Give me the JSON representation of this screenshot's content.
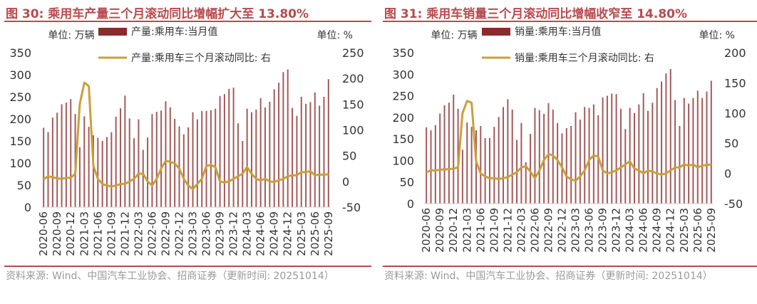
{
  "colors": {
    "title": "#b84a4f",
    "bar": "#8b2b2b",
    "line": "#c9a03a",
    "rule": "#b84a4f",
    "source": "#9a9a9a",
    "axis": "#333333"
  },
  "chart_data": [
    {
      "type": "bar",
      "title": "图 30:  乘用车产量三个月滚动同比增幅扩大至 13.80%",
      "left_unit": "单位:   万辆",
      "right_unit": "单位:    %",
      "legend_position": "top",
      "source": "资料来源:  Wind、中国汽车工业协会、招商证券（更新时间:  20251014）",
      "categories": [
        "2020-06",
        "2020-07",
        "2020-08",
        "2020-09",
        "2020-10",
        "2020-11",
        "2020-12",
        "2021-01",
        "2021-02",
        "2021-03",
        "2021-04",
        "2021-05",
        "2021-06",
        "2021-07",
        "2021-08",
        "2021-09",
        "2021-10",
        "2021-11",
        "2021-12",
        "2022-01",
        "2022-02",
        "2022-03",
        "2022-04",
        "2022-05",
        "2022-06",
        "2022-07",
        "2022-08",
        "2022-09",
        "2022-10",
        "2022-11",
        "2022-12",
        "2023-01",
        "2023-02",
        "2023-03",
        "2023-04",
        "2023-05",
        "2023-06",
        "2023-07",
        "2023-08",
        "2023-09",
        "2023-10",
        "2023-11",
        "2023-12",
        "2024-01",
        "2024-02",
        "2024-03",
        "2024-04",
        "2024-05",
        "2024-06",
        "2024-07",
        "2024-08",
        "2024-09",
        "2024-10",
        "2024-11",
        "2024-12",
        "2025-01",
        "2025-02",
        "2025-03",
        "2025-04",
        "2025-05",
        "2025-06",
        "2025-07",
        "2025-08",
        "2025-09"
      ],
      "x_tick_labels": [
        "2020-06",
        "2020-09",
        "2020-12",
        "2021-03",
        "2021-06",
        "2021-09",
        "2021-12",
        "2022-03",
        "2022-06",
        "2022-09",
        "2022-12",
        "2023-03",
        "2023-06",
        "2023-09",
        "2023-12",
        "2024-03",
        "2024-06",
        "2024-09",
        "2024-12",
        "2025-03",
        "2025-06",
        "2025-09"
      ],
      "y_left": {
        "min": 0,
        "max": 350,
        "ticks": [
          0,
          50,
          100,
          150,
          200,
          250,
          300,
          350
        ]
      },
      "y_right": {
        "min": -50,
        "max": 250,
        "ticks": [
          -50,
          0,
          50,
          100,
          150,
          200,
          250
        ]
      },
      "series": [
        {
          "name": "产量:乘用车:当月值",
          "axis": "left",
          "type": "bar",
          "values": [
            180,
            170,
            203,
            214,
            233,
            237,
            245,
            211,
            136,
            206,
            182,
            163,
            157,
            150,
            159,
            170,
            205,
            224,
            253,
            201,
            156,
            199,
            130,
            158,
            211,
            216,
            219,
            240,
            226,
            200,
            183,
            165,
            181,
            215,
            199,
            218,
            218,
            220,
            223,
            252,
            256,
            268,
            271,
            190,
            150,
            223,
            215,
            221,
            247,
            226,
            239,
            267,
            282,
            306,
            312,
            225,
            207,
            250,
            234,
            238,
            260,
            230,
            250,
            290
          ]
        },
        {
          "name": "产量:乘用车三个月滚动同比:  右",
          "axis": "right",
          "type": "line",
          "values": [
            4,
            10,
            8,
            6,
            5,
            7,
            7,
            15,
            150,
            192,
            185,
            30,
            5,
            -5,
            -8,
            -10,
            -8,
            -5,
            -5,
            0,
            5,
            15,
            15,
            0,
            -8,
            5,
            25,
            40,
            38,
            35,
            25,
            5,
            -8,
            -15,
            -5,
            5,
            30,
            32,
            28,
            0,
            -2,
            0,
            5,
            10,
            15,
            28,
            15,
            5,
            2,
            5,
            0,
            -1,
            2,
            5,
            10,
            12,
            12,
            18,
            18,
            20,
            12,
            13,
            13,
            13.8
          ]
        }
      ]
    },
    {
      "type": "bar",
      "title": "图 31:  乘用车销量三个月滚动同比增幅收窄至 14.80%",
      "left_unit": "单位:   万辆",
      "right_unit": "单位:    %",
      "legend_position": "top",
      "source": "资料来源:  Wind、中国汽车工业协会、招商证券（更新时间:  20251014）",
      "categories": [
        "2020-06",
        "2020-07",
        "2020-08",
        "2020-09",
        "2020-10",
        "2020-11",
        "2020-12",
        "2021-01",
        "2021-02",
        "2021-03",
        "2021-04",
        "2021-05",
        "2021-06",
        "2021-07",
        "2021-08",
        "2021-09",
        "2021-10",
        "2021-11",
        "2021-12",
        "2022-01",
        "2022-02",
        "2022-03",
        "2022-04",
        "2022-05",
        "2022-06",
        "2022-07",
        "2022-08",
        "2022-09",
        "2022-10",
        "2022-11",
        "2022-12",
        "2023-01",
        "2023-02",
        "2023-03",
        "2023-04",
        "2023-05",
        "2023-06",
        "2023-07",
        "2023-08",
        "2023-09",
        "2023-10",
        "2023-11",
        "2023-12",
        "2024-01",
        "2024-02",
        "2024-03",
        "2024-04",
        "2024-05",
        "2024-06",
        "2024-07",
        "2024-08",
        "2024-09",
        "2024-10",
        "2024-11",
        "2024-12",
        "2025-01",
        "2025-02",
        "2025-03",
        "2025-04",
        "2025-05",
        "2025-06",
        "2025-07",
        "2025-08",
        "2025-09"
      ],
      "x_tick_labels": [
        "2020-06",
        "2020-09",
        "2020-12",
        "2021-03",
        "2021-06",
        "2021-09",
        "2021-12",
        "2022-03",
        "2022-06",
        "2022-09",
        "2022-12",
        "2023-03",
        "2023-06",
        "2023-09",
        "2023-12",
        "2024-03",
        "2024-06",
        "2024-09",
        "2024-12",
        "2025-03",
        "2025-06",
        "2025-09"
      ],
      "y_left": {
        "min": 0,
        "max": 350,
        "ticks": [
          0,
          50,
          100,
          150,
          200,
          250,
          300,
          350
        ]
      },
      "y_right": {
        "min": -50,
        "max": 200,
        "ticks": [
          -50,
          0,
          50,
          100,
          150,
          200
        ]
      },
      "series": [
        {
          "name": "销量:乘用车:当月值",
          "axis": "left",
          "type": "bar",
          "values": [
            177,
            170,
            182,
            209,
            228,
            234,
            253,
            220,
            125,
            188,
            178,
            170,
            180,
            152,
            152,
            178,
            201,
            224,
            242,
            218,
            148,
            187,
            96,
            162,
            222,
            217,
            208,
            233,
            218,
            187,
            163,
            175,
            180,
            212,
            195,
            224,
            222,
            230,
            205,
            246,
            250,
            255,
            254,
            220,
            173,
            222,
            210,
            230,
            256,
            215,
            234,
            268,
            283,
            302,
            312,
            240,
            180,
            245,
            232,
            245,
            262,
            245,
            260,
            285
          ]
        },
        {
          "name": "销量:乘用车三个月滚动同比:  右",
          "axis": "right",
          "type": "line",
          "values": [
            2,
            5,
            5,
            6,
            7,
            7,
            8,
            10,
            100,
            120,
            117,
            20,
            0,
            -5,
            -8,
            -8,
            -9,
            -8,
            -6,
            -2,
            2,
            10,
            12,
            3,
            -8,
            5,
            22,
            32,
            30,
            22,
            10,
            -5,
            -10,
            -12,
            -5,
            5,
            22,
            30,
            28,
            5,
            0,
            2,
            5,
            10,
            15,
            20,
            8,
            5,
            0,
            5,
            3,
            0,
            -2,
            0,
            5,
            10,
            10,
            15,
            13,
            15,
            10,
            13,
            14,
            14.8
          ]
        }
      ]
    }
  ]
}
